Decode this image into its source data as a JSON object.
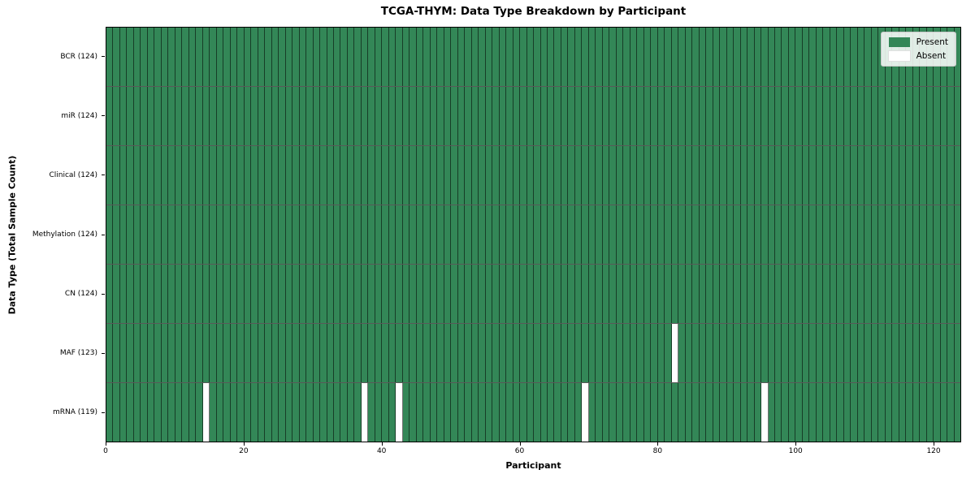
{
  "chart_data": {
    "type": "heatmap",
    "title": "TCGA-THYM: Data Type Breakdown by Participant",
    "xlabel": "Participant",
    "ylabel": "Data Type (Total Sample Count)",
    "n_participants": 124,
    "x_range": [
      0,
      124
    ],
    "x_ticks": [
      0,
      20,
      40,
      60,
      80,
      100,
      120
    ],
    "grid": "cell-borders",
    "legend_position": "upper-right",
    "rows": [
      {
        "label": "BCR (124)",
        "data_type": "BCR",
        "present_count": 124,
        "absent_participants": []
      },
      {
        "label": "miR (124)",
        "data_type": "miR",
        "present_count": 124,
        "absent_participants": []
      },
      {
        "label": "Clinical (124)",
        "data_type": "Clinical",
        "present_count": 124,
        "absent_participants": []
      },
      {
        "label": "Methylation (124)",
        "data_type": "Methylation",
        "present_count": 124,
        "absent_participants": []
      },
      {
        "label": "CN (124)",
        "data_type": "CN",
        "present_count": 124,
        "absent_participants": []
      },
      {
        "label": "MAF (123)",
        "data_type": "MAF",
        "present_count": 123,
        "absent_participants": [
          82
        ]
      },
      {
        "label": "mRNA (119)",
        "data_type": "mRNA",
        "present_count": 119,
        "absent_participants": [
          14,
          37,
          42,
          69,
          95
        ]
      }
    ],
    "legend": [
      {
        "label": "Present",
        "color": "#338757"
      },
      {
        "label": "Absent",
        "color": "#ffffff"
      }
    ],
    "colors": {
      "present": "#338757",
      "absent": "#ffffff",
      "cell_border": "#1d4530",
      "plot_border": "#000000",
      "legend_border": "#c9c9c9",
      "background": "#ffffff"
    }
  }
}
